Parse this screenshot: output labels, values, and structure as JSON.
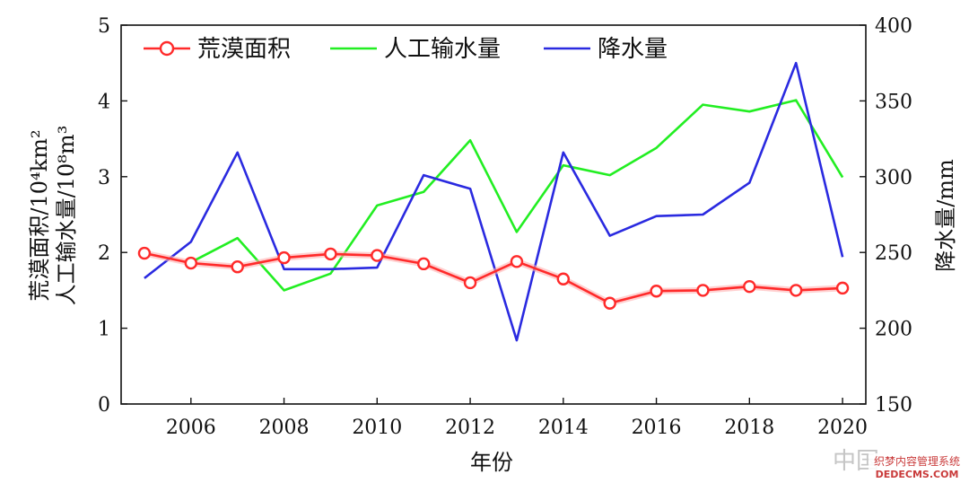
{
  "chart_data": {
    "type": "line",
    "x": [
      2005,
      2006,
      2007,
      2008,
      2009,
      2010,
      2011,
      2012,
      2013,
      2014,
      2015,
      2016,
      2017,
      2018,
      2019,
      2020
    ],
    "xticks": [
      "2006",
      "2008",
      "2010",
      "2012",
      "2014",
      "2016",
      "2018",
      "2020"
    ],
    "xlabel": "年份",
    "ylabel_left_line1": "荒漠面积/10⁴km²",
    "ylabel_left_line2": "人工输水量/10⁸m³",
    "ylabel_right": "降水量/mm",
    "ylim_left": [
      0,
      5
    ],
    "yticks_left": [
      "0",
      "1",
      "2",
      "3",
      "4",
      "5"
    ],
    "ylim_right": [
      150,
      400
    ],
    "yticks_right": [
      "150",
      "200",
      "250",
      "300",
      "350",
      "400"
    ],
    "series": [
      {
        "name": "荒漠面积",
        "axis": "left",
        "color": "#ff2a2a",
        "marker": "circle",
        "values": [
          1.99,
          1.86,
          1.81,
          1.93,
          1.98,
          1.96,
          1.85,
          1.6,
          1.88,
          1.65,
          1.33,
          1.49,
          1.5,
          1.55,
          1.5,
          1.53
        ]
      },
      {
        "name": "人工输水量",
        "axis": "left",
        "color": "#22ee22",
        "marker": "none",
        "values": [
          null,
          1.87,
          2.19,
          1.5,
          1.72,
          2.62,
          2.8,
          3.48,
          2.27,
          3.15,
          3.02,
          3.38,
          3.95,
          3.86,
          4.01,
          2.99
        ]
      },
      {
        "name": "降水量",
        "axis": "right",
        "color": "#2a2ae0",
        "marker": "none",
        "values": [
          233,
          257,
          316,
          239,
          239,
          240,
          301,
          292,
          192,
          316,
          261,
          274,
          275,
          296,
          375,
          247
        ]
      }
    ],
    "legend_position": "top-left"
  },
  "watermark": {
    "text1": "中国",
    "text2": "织梦内容管理系统",
    "text3": "DEDECMS.COM"
  }
}
